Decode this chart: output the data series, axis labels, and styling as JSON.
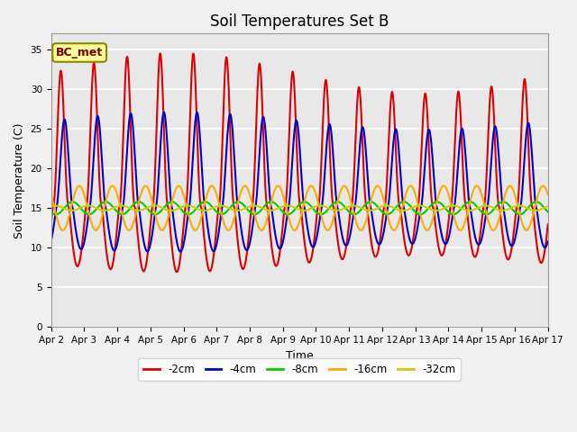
{
  "title": "Soil Temperatures Set B",
  "xlabel": "Time",
  "ylabel": "Soil Temperature (C)",
  "ylim": [
    0,
    37
  ],
  "yticks": [
    0,
    5,
    10,
    15,
    20,
    25,
    30,
    35
  ],
  "legend_label": "BC_met",
  "series_labels": [
    "-2cm",
    "-4cm",
    "-8cm",
    "-16cm",
    "-32cm"
  ],
  "series_colors": [
    "#dd0000",
    "#0000cc",
    "#00cc00",
    "#ffaa00",
    "#cccc00"
  ],
  "series_linewidths": [
    1.5,
    1.5,
    1.5,
    1.5,
    1.5
  ],
  "start_day": 2,
  "end_day": 17,
  "n_points": 1500,
  "bg_color": "#f0f0f0",
  "plot_bg_color": "#e8e8e8",
  "grid_color": "#cccccc",
  "title_fontsize": 12,
  "axis_label_fontsize": 9,
  "tick_fontsize": 7.5,
  "legend_box_color": "#ffff99",
  "legend_box_edge": "#888800"
}
